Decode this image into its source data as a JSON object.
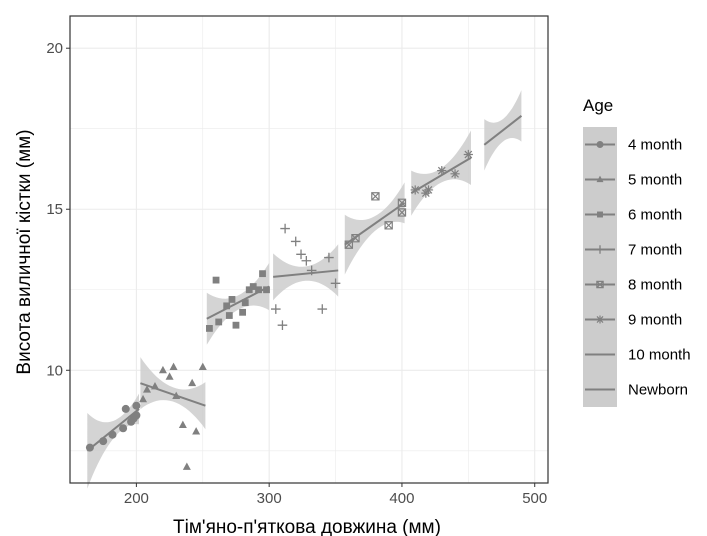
{
  "chart_data": {
    "type": "scatter",
    "xlabel": "Тім'яно-п'яткова довжина (мм)",
    "ylabel": "Висота виличної кістки (мм)",
    "xlim": [
      150,
      510
    ],
    "ylim": [
      6.5,
      21
    ],
    "x_ticks": [
      200,
      300,
      400,
      500
    ],
    "y_ticks": [
      10,
      15,
      20
    ],
    "grid": true,
    "legend_title": "Age",
    "legend_position": "right",
    "colors": {
      "points": "#808080",
      "line": "#808080",
      "ribbon": "#cccccc",
      "grid": "#ebebeb",
      "panel_border": "#333333"
    },
    "series": [
      {
        "name": "4 month",
        "shape": "circle",
        "points": [
          [
            165,
            7.6
          ],
          [
            175,
            7.8
          ],
          [
            182,
            8.0
          ],
          [
            190,
            8.2
          ],
          [
            192,
            8.8
          ],
          [
            196,
            8.4
          ],
          [
            198,
            8.5
          ],
          [
            200,
            8.6
          ],
          [
            200,
            8.9
          ]
        ],
        "fit": [
          [
            163,
            7.5
          ],
          [
            202,
            8.8
          ]
        ]
      },
      {
        "name": "5 month",
        "shape": "triangle",
        "points": [
          [
            205,
            9.1
          ],
          [
            208,
            9.4
          ],
          [
            214,
            9.5
          ],
          [
            220,
            10.0
          ],
          [
            225,
            9.8
          ],
          [
            228,
            10.1
          ],
          [
            230,
            9.2
          ],
          [
            235,
            8.3
          ],
          [
            238,
            7.0
          ],
          [
            242,
            9.6
          ],
          [
            245,
            8.1
          ],
          [
            250,
            10.1
          ]
        ],
        "fit": [
          [
            203,
            9.6
          ],
          [
            252,
            8.9
          ]
        ]
      },
      {
        "name": "6 month",
        "shape": "square",
        "points": [
          [
            255,
            11.3
          ],
          [
            260,
            12.8
          ],
          [
            262,
            11.5
          ],
          [
            268,
            12.0
          ],
          [
            270,
            11.7
          ],
          [
            272,
            12.2
          ],
          [
            275,
            11.4
          ],
          [
            280,
            11.8
          ],
          [
            282,
            12.1
          ],
          [
            285,
            12.5
          ],
          [
            288,
            12.6
          ],
          [
            292,
            12.5
          ],
          [
            295,
            13.0
          ],
          [
            298,
            12.5
          ]
        ],
        "fit": [
          [
            253,
            11.6
          ],
          [
            300,
            12.6
          ]
        ]
      },
      {
        "name": "7 month",
        "shape": "plus",
        "points": [
          [
            305,
            11.9
          ],
          [
            310,
            11.4
          ],
          [
            312,
            14.4
          ],
          [
            320,
            14.0
          ],
          [
            324,
            13.6
          ],
          [
            328,
            13.4
          ],
          [
            332,
            13.1
          ],
          [
            340,
            11.9
          ],
          [
            345,
            13.5
          ],
          [
            350,
            12.7
          ]
        ],
        "fit": [
          [
            303,
            12.9
          ],
          [
            352,
            13.1
          ]
        ]
      },
      {
        "name": "8 month",
        "shape": "boxx",
        "points": [
          [
            360,
            13.9
          ],
          [
            365,
            14.1
          ],
          [
            380,
            15.4
          ],
          [
            390,
            14.5
          ],
          [
            400,
            14.9
          ],
          [
            400,
            15.2
          ]
        ],
        "fit": [
          [
            357,
            13.9
          ],
          [
            402,
            15.2
          ]
        ]
      },
      {
        "name": "9 month",
        "shape": "star",
        "points": [
          [
            410,
            15.6
          ],
          [
            418,
            15.5
          ],
          [
            420,
            15.6
          ],
          [
            430,
            16.2
          ],
          [
            440,
            16.1
          ],
          [
            450,
            16.7
          ]
        ],
        "fit": [
          [
            407,
            15.5
          ],
          [
            452,
            16.6
          ]
        ]
      },
      {
        "name": "10 month",
        "shape": "none",
        "points": [],
        "fit": [
          [
            462,
            17.0
          ],
          [
            490,
            17.9
          ]
        ]
      },
      {
        "name": "Newborn",
        "shape": "none",
        "points": [],
        "fit": []
      }
    ]
  }
}
